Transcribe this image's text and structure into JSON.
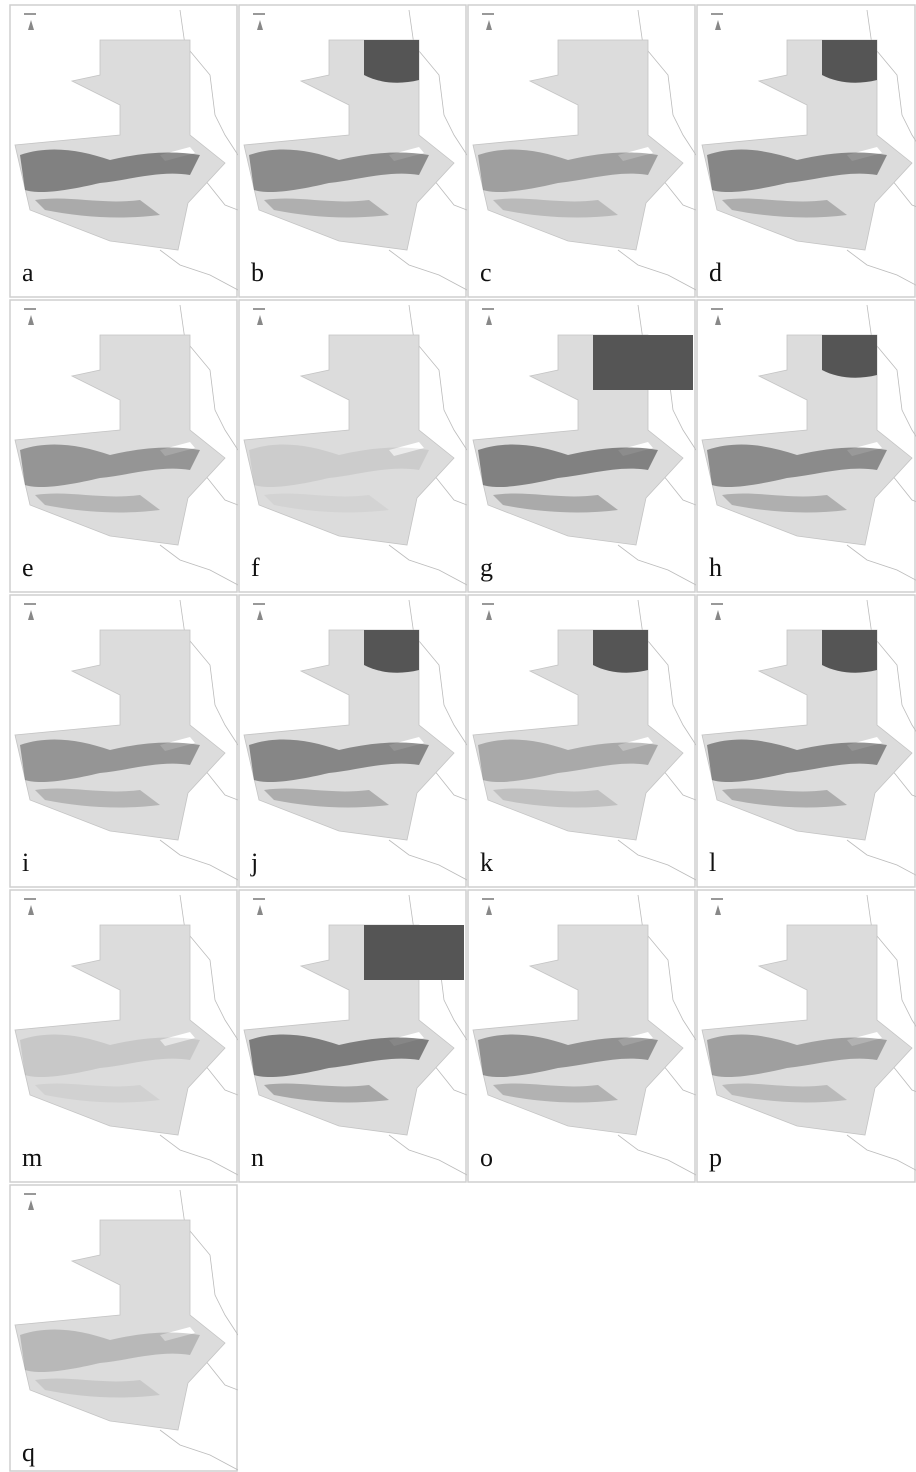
{
  "panels": [
    {
      "label": "a"
    },
    {
      "label": "b"
    },
    {
      "label": "c"
    },
    {
      "label": "d"
    },
    {
      "label": "e"
    },
    {
      "label": "f"
    },
    {
      "label": "g"
    },
    {
      "label": "h"
    },
    {
      "label": "i"
    },
    {
      "label": "j"
    },
    {
      "label": "k"
    },
    {
      "label": "l"
    },
    {
      "label": "m"
    },
    {
      "label": "n"
    },
    {
      "label": "o"
    },
    {
      "label": "p"
    },
    {
      "label": "q"
    }
  ]
}
